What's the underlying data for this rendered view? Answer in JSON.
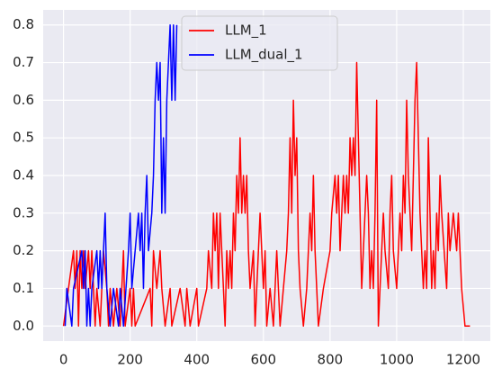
{
  "chart_data": {
    "type": "line",
    "xlim": [
      -61,
      1281
    ],
    "xticks": [
      0,
      200,
      400,
      600,
      800,
      1000,
      1200
    ],
    "ylim": [
      -0.04,
      0.84
    ],
    "yticks": [
      {
        "value": 0,
        "label": "0.0"
      },
      0.1,
      0.2,
      0.3,
      0.4,
      0.5,
      0.6,
      0.7,
      0.8
    ],
    "grid": true,
    "legend": "upper center",
    "series": [
      {
        "name": "LLM_1",
        "color": "#ff0000",
        "x": [
          0,
          30,
          35,
          40,
          45,
          50,
          55,
          60,
          65,
          75,
          80,
          85,
          90,
          95,
          100,
          110,
          120,
          130,
          135,
          140,
          150,
          160,
          170,
          180,
          185,
          200,
          205,
          210,
          215,
          260,
          265,
          270,
          280,
          290,
          295,
          305,
          320,
          325,
          350,
          365,
          370,
          380,
          400,
          405,
          430,
          435,
          445,
          450,
          455,
          460,
          465,
          470,
          475,
          480,
          485,
          490,
          495,
          500,
          505,
          510,
          515,
          520,
          525,
          530,
          535,
          540,
          545,
          550,
          555,
          560,
          570,
          575,
          580,
          590,
          595,
          600,
          605,
          610,
          620,
          630,
          640,
          645,
          650,
          660,
          670,
          675,
          680,
          685,
          690,
          695,
          700,
          705,
          710,
          720,
          730,
          740,
          745,
          750,
          755,
          760,
          765,
          780,
          800,
          805,
          815,
          820,
          825,
          830,
          835,
          840,
          845,
          850,
          855,
          860,
          865,
          870,
          875,
          880,
          885,
          890,
          895,
          900,
          905,
          910,
          915,
          920,
          925,
          930,
          935,
          940,
          945,
          950,
          960,
          965,
          975,
          980,
          985,
          990,
          1000,
          1010,
          1015,
          1020,
          1025,
          1030,
          1035,
          1040,
          1045,
          1050,
          1055,
          1060,
          1065,
          1070,
          1075,
          1080,
          1085,
          1090,
          1095,
          1100,
          1105,
          1110,
          1115,
          1120,
          1125,
          1130,
          1135,
          1150,
          1155,
          1160,
          1170,
          1180,
          1185,
          1195,
          1205,
          1220
        ],
        "values": [
          0,
          0.2,
          0.1,
          0.2,
          0,
          0.2,
          0.1,
          0.2,
          0.1,
          0.2,
          0.1,
          0.2,
          0.1,
          0,
          0.1,
          0,
          0.2,
          0.1,
          0,
          0.1,
          0,
          0.1,
          0,
          0.2,
          0,
          0.1,
          0,
          0.1,
          0,
          0.1,
          0,
          0.2,
          0.1,
          0.2,
          0.1,
          0,
          0.1,
          0,
          0.1,
          0,
          0.1,
          0,
          0.1,
          0,
          0.1,
          0.2,
          0.1,
          0.3,
          0.2,
          0.3,
          0.1,
          0.3,
          0.2,
          0.1,
          0,
          0.2,
          0.1,
          0.2,
          0.1,
          0.3,
          0.2,
          0.4,
          0.3,
          0.5,
          0.3,
          0.4,
          0.3,
          0.4,
          0.2,
          0.1,
          0.2,
          0,
          0.1,
          0.3,
          0.2,
          0.1,
          0.2,
          0,
          0.1,
          0,
          0.2,
          0.1,
          0,
          0.1,
          0.2,
          0.3,
          0.5,
          0.3,
          0.6,
          0.4,
          0.5,
          0.2,
          0.1,
          0,
          0.1,
          0.3,
          0.2,
          0.4,
          0.2,
          0.1,
          0,
          0.1,
          0.2,
          0.3,
          0.4,
          0.3,
          0.4,
          0.2,
          0.3,
          0.4,
          0.3,
          0.4,
          0.3,
          0.5,
          0.4,
          0.5,
          0.4,
          0.7,
          0.5,
          0.3,
          0.1,
          0.2,
          0.3,
          0.4,
          0.3,
          0.1,
          0.2,
          0.1,
          0.3,
          0.6,
          0,
          0.1,
          0.3,
          0.2,
          0.1,
          0.3,
          0.4,
          0.2,
          0.1,
          0.3,
          0.2,
          0.4,
          0.3,
          0.6,
          0.4,
          0.3,
          0.2,
          0.4,
          0.6,
          0.7,
          0.5,
          0.3,
          0.2,
          0.1,
          0.2,
          0.1,
          0.5,
          0.3,
          0.1,
          0.2,
          0.1,
          0.3,
          0.2,
          0.4,
          0.3,
          0.1,
          0.3,
          0.2,
          0.3,
          0.2,
          0.3,
          0.1,
          0,
          0
        ]
      },
      {
        "name": "LLM_dual_1",
        "color": "#0000ff",
        "x": [
          5,
          10,
          25,
          30,
          55,
          60,
          65,
          70,
          75,
          80,
          85,
          100,
          105,
          110,
          115,
          125,
          130,
          140,
          150,
          165,
          170,
          180,
          195,
          200,
          205,
          215,
          225,
          230,
          235,
          240,
          245,
          250,
          255,
          265,
          270,
          275,
          280,
          285,
          290,
          295,
          300,
          305,
          310,
          315,
          320,
          325,
          330,
          335,
          340
        ],
        "values": [
          0,
          0.1,
          0,
          0.1,
          0.2,
          0.1,
          0.2,
          0,
          0.1,
          0,
          0.1,
          0.2,
          0.1,
          0.2,
          0.1,
          0.3,
          0.1,
          0,
          0.1,
          0,
          0.1,
          0,
          0.2,
          0.3,
          0.1,
          0.2,
          0.3,
          0.2,
          0.3,
          0.1,
          0.3,
          0.4,
          0.2,
          0.3,
          0.4,
          0.6,
          0.7,
          0.6,
          0.7,
          0.3,
          0.5,
          0.3,
          0.6,
          0.7,
          0.8,
          0.6,
          0.8,
          0.6,
          0.8
        ]
      }
    ]
  }
}
